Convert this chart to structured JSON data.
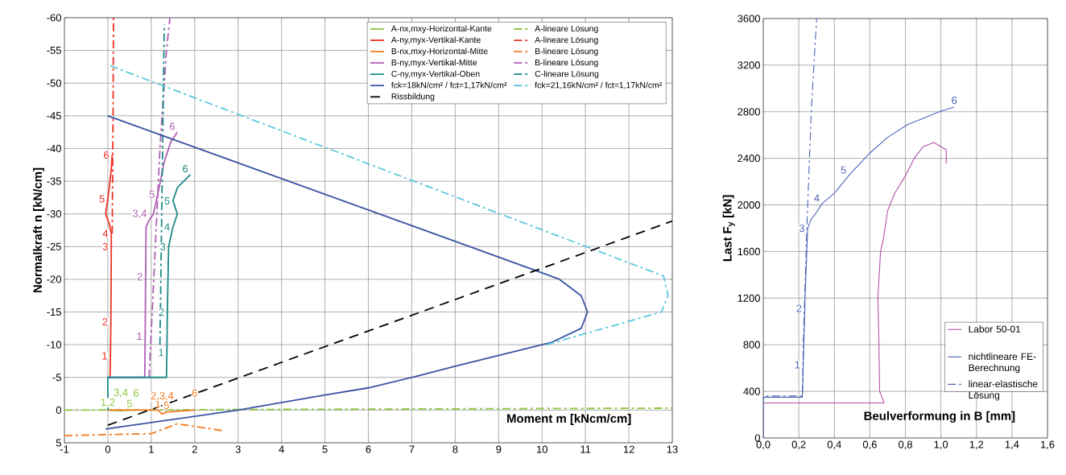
{
  "chart_data": [
    {
      "type": "line",
      "xlabel": "Moment m [kNcm/cm]",
      "ylabel": "Normalkraft  n [kN/cm]",
      "xlim": [
        -1,
        13
      ],
      "ylim": [
        5,
        -60
      ],
      "xticks": [
        -1,
        0,
        1,
        2,
        3,
        4,
        5,
        6,
        7,
        8,
        9,
        10,
        11,
        12,
        13
      ],
      "yticks": [
        -60,
        -55,
        -50,
        -45,
        -40,
        -35,
        -30,
        -25,
        -20,
        -15,
        -10,
        -5,
        0,
        5
      ],
      "grid": true,
      "legend": "top right",
      "series": [
        {
          "name": "A-nx,mxy-Horizontal-Kante",
          "color": "#8dc63f",
          "line_style": "solid",
          "x": [
            0,
            0.3,
            0.5,
            0.65
          ],
          "values": [
            0,
            0.1,
            0,
            0
          ]
        },
        {
          "name": "A-lineare Lösung",
          "color": "#8dc63f",
          "line_style": "dashdot",
          "x": [
            -1,
            13
          ],
          "values": [
            0,
            -0.3
          ]
        },
        {
          "name": "A-ny,myx-Vertikal-Kante",
          "color": "#ee3124",
          "line_style": "solid",
          "x": [
            0.05,
            0.06,
            0.07,
            0.08,
            0.08,
            0.03,
            -0.05,
            0.0,
            0.05,
            0.08,
            0.1
          ],
          "values": [
            -5,
            -8.3,
            -13.5,
            -25,
            -27,
            -28.5,
            -30,
            -32.3,
            -35,
            -37,
            -39
          ]
        },
        {
          "name": "A-lineare Lösung",
          "color": "#ee3124",
          "line_style": "dashdot",
          "x": [
            0.1,
            0.12,
            0.13
          ],
          "values": [
            -27,
            -45,
            -60
          ]
        },
        {
          "name": "B-nx,mxy-Horizontal-Mitte",
          "color": "#f47b20",
          "line_style": "solid",
          "x": [
            0,
            1.15,
            1.25,
            1.35,
            2.0
          ],
          "values": [
            0,
            0,
            0.6,
            0.3,
            0
          ]
        },
        {
          "name": "B-lineare Lösung",
          "color": "#f47b20",
          "line_style": "dashdot",
          "x": [
            -1,
            1.0,
            1.6,
            2.7
          ],
          "values": [
            3.9,
            3.6,
            2.1,
            3.2
          ]
        },
        {
          "name": "B-ny,myx-Vertikal-Mitte",
          "color": "#b05fb5",
          "line_style": "solid",
          "x": [
            0,
            0.85,
            0.86,
            0.87,
            0.88,
            0.95,
            1.05,
            1.15,
            1.3,
            1.45,
            1.6
          ],
          "values": [
            -5,
            -5,
            -11.3,
            -20.4,
            -28,
            -29,
            -30,
            -33,
            -38,
            -41,
            -42.5
          ]
        },
        {
          "name": "B-lineare Lösung",
          "color": "#b05fb5",
          "line_style": "dashdot",
          "x": [
            0.95,
            1.2,
            1.35,
            1.43
          ],
          "values": [
            -5,
            -40,
            -55,
            -60
          ]
        },
        {
          "name": "C-ny,myx-Vertikal-Oben",
          "color": "#1a8a87",
          "line_style": "solid",
          "x": [
            0,
            0,
            1.35,
            1.36,
            1.37,
            1.4,
            1.5,
            1.6,
            1.5,
            1.6,
            1.9
          ],
          "values": [
            0,
            -5,
            -5,
            -8.8,
            -15,
            -25,
            -28,
            -30,
            -32,
            -34,
            -36
          ]
        },
        {
          "name": "C-lineare Lösung",
          "color": "#1a8a87",
          "line_style": "dashdot",
          "x": [
            1.2,
            1.3
          ],
          "values": [
            -10,
            -59
          ]
        },
        {
          "name": "fck=18kN/cm² / fct=1,17kN/cm²",
          "color": "#3953a4",
          "line_style": "solid",
          "x": [
            -0.05,
            3,
            5,
            6,
            7,
            8,
            10,
            10.2,
            10.9,
            11.05,
            10.9,
            10.4,
            10,
            0
          ],
          "values": [
            2.9,
            0,
            -2.3,
            -3.4,
            -5,
            -6.7,
            -10,
            -10.3,
            -12.5,
            -15,
            -17.5,
            -20,
            -21,
            -45
          ]
        },
        {
          "name": "fck=21,16kN/cm² / fct=1,17kN/cm²",
          "color": "#5bc8dc",
          "line_style": "dashdot",
          "x": [
            10.1,
            12.75,
            12.9,
            12.8,
            0
          ],
          "values": [
            -10,
            -15,
            -17.5,
            -20.5,
            -52.8
          ]
        },
        {
          "name": "Rissbildung",
          "color": "#000000",
          "line_style": "dashed",
          "x": [
            0,
            13
          ],
          "values": [
            2.3,
            -28.9
          ]
        }
      ],
      "annotations": [
        {
          "text": "1,2",
          "x": 0,
          "y": 0
        },
        {
          "text": "3,4",
          "x": 0.3,
          "y": 0.1
        },
        {
          "text": "5",
          "x": 0.5,
          "y": 0
        },
        {
          "text": "6",
          "x": 0.65,
          "y": 0
        },
        {
          "text": "1",
          "x": 1.15,
          "y": 0
        },
        {
          "text": "2,3,4",
          "x": 1.25,
          "y": 0.6
        },
        {
          "text": "5",
          "x": 1.35,
          "y": 0.3
        },
        {
          "text": "6",
          "x": 2.0,
          "y": 0
        },
        {
          "text": "1",
          "x": 0.06,
          "y": -8.3
        },
        {
          "text": "2",
          "x": 0.07,
          "y": -13.5
        },
        {
          "text": "3",
          "x": 0.08,
          "y": -25
        },
        {
          "text": "4",
          "x": 0.08,
          "y": -27
        },
        {
          "text": "5",
          "x": 0.0,
          "y": -32.3
        },
        {
          "text": "6",
          "x": 0.1,
          "y": -39
        },
        {
          "text": "1",
          "x": 0.86,
          "y": -11.3
        },
        {
          "text": "2",
          "x": 0.87,
          "y": -20.4
        },
        {
          "text": "3,4",
          "x": 0.95,
          "y": -29
        },
        {
          "text": "5",
          "x": 1.15,
          "y": -33
        },
        {
          "text": "6",
          "x": 1.6,
          "y": -42.5
        },
        {
          "text": "1",
          "x": 1.36,
          "y": -8.8
        },
        {
          "text": "2",
          "x": 1.37,
          "y": -15
        },
        {
          "text": "3",
          "x": 1.4,
          "y": -25
        },
        {
          "text": "4",
          "x": 1.5,
          "y": -28
        },
        {
          "text": "5",
          "x": 1.5,
          "y": -32
        },
        {
          "text": "6",
          "x": 1.9,
          "y": -36
        }
      ]
    },
    {
      "type": "line",
      "xlabel": "Beulverformung in B [mm]",
      "ylabel": "Last  F$_{y}$ [kN]",
      "xlim": [
        0,
        1.6
      ],
      "ylim": [
        0,
        3600
      ],
      "xticks": [
        {
          "value": 0,
          "label": "0,0"
        },
        {
          "value": 0.2,
          "label": "0,2"
        },
        {
          "value": 0.4,
          "label": "0,4"
        },
        {
          "value": 0.6,
          "label": "0,6"
        },
        {
          "value": 0.8,
          "label": "0,8"
        },
        {
          "value": 1.0,
          "label": "1,0"
        },
        {
          "value": 1.2,
          "label": "1,2"
        },
        {
          "value": 1.4,
          "label": "1,4"
        },
        {
          "value": 1.6,
          "label": "1,6"
        }
      ],
      "yticks": [
        0,
        400,
        800,
        1200,
        1600,
        2000,
        2400,
        2800,
        3200,
        3600
      ],
      "grid": true,
      "legend": "bottom right",
      "series": [
        {
          "name": "Labor 50-01",
          "color": "#b44fae",
          "line_style": "solid",
          "x": [
            0,
            0,
            0.68,
            0.655,
            0.65,
            0.645,
            0.66,
            0.675,
            0.7,
            0.74,
            0.8,
            0.85,
            0.9,
            0.96,
            1.03,
            1.03
          ],
          "values": [
            0,
            300,
            300,
            400,
            900,
            1200,
            1600,
            1700,
            1950,
            2100,
            2250,
            2400,
            2500,
            2536,
            2474,
            2356
          ]
        },
        {
          "name": "nichtlineare FE-Berechnung",
          "color": "#4a64b8",
          "line_style": "solid",
          "x": [
            0,
            0,
            0.22,
            0.225,
            0.234,
            0.235,
            0.25,
            0.27,
            0.29,
            0.33,
            0.4,
            0.48,
            0.6,
            0.7,
            0.81,
            1.0,
            1.075
          ],
          "values": [
            0,
            350,
            350,
            628,
            1112,
            1200,
            1800,
            1880,
            1914,
            2010,
            2100,
            2250,
            2446,
            2580,
            2688,
            2805,
            2840
          ]
        },
        {
          "name": "linear-elastische Lösung",
          "color": "#4a64b8",
          "line_style": "dashdot",
          "x": [
            0,
            0,
            0.22,
            0.225,
            0.245,
            0.27,
            0.3
          ],
          "values": [
            0,
            360,
            360,
            800,
            1800,
            2800,
            3600
          ]
        }
      ],
      "annotations": [
        {
          "text": "1",
          "x": 0.225,
          "y": 628
        },
        {
          "text": "2",
          "x": 0.234,
          "y": 1112
        },
        {
          "text": "3",
          "x": 0.25,
          "y": 1800
        },
        {
          "text": "4",
          "x": 0.33,
          "y": 2010
        },
        {
          "text": "5",
          "x": 0.48,
          "y": 2250
        },
        {
          "text": "6",
          "x": 1.075,
          "y": 2840
        }
      ]
    }
  ]
}
